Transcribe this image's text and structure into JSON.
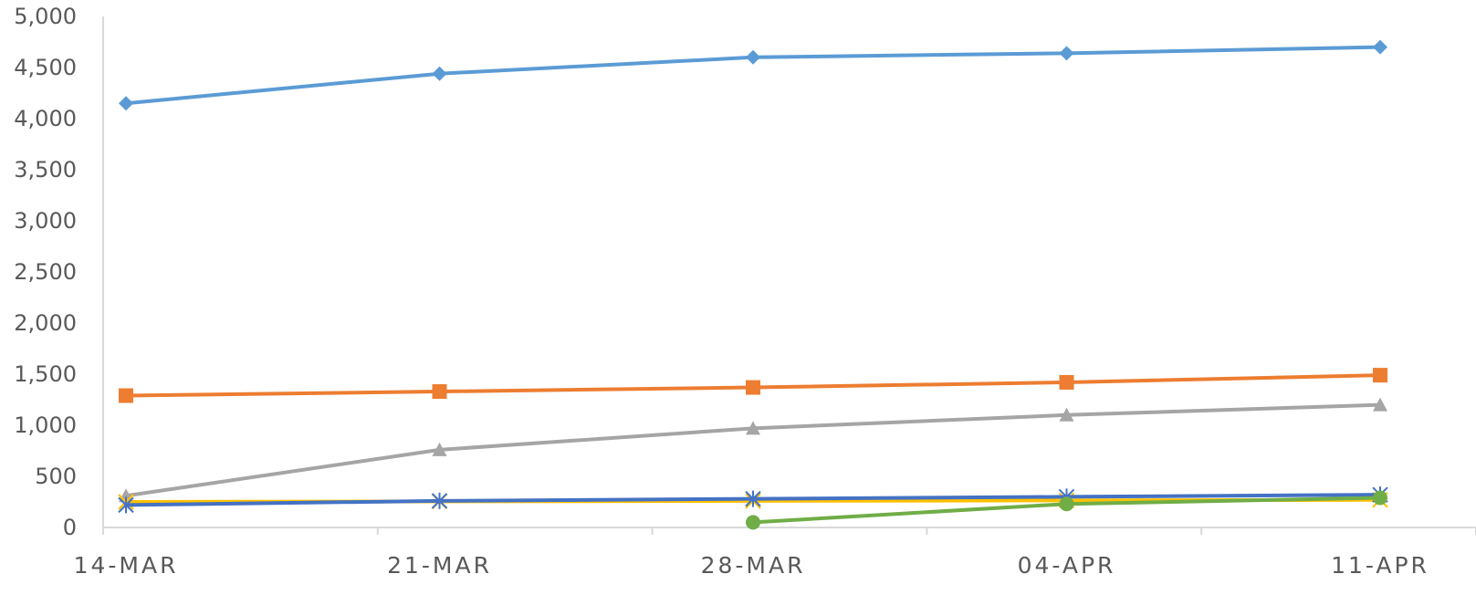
{
  "chart_data": {
    "type": "line",
    "title": "",
    "xlabel": "",
    "ylabel": "",
    "ylim": [
      0,
      5000
    ],
    "y_ticks": [
      "0",
      "500",
      "1,000",
      "1,500",
      "2,000",
      "2,500",
      "3,000",
      "3,500",
      "4,000",
      "4,500",
      "5,000"
    ],
    "x_ticks": [
      "14-MAR",
      "21-MAR",
      "28-MAR",
      "04-APR",
      "11-APR"
    ],
    "categories": [
      "14-MAR",
      "21-MAR",
      "28-MAR",
      "04-APR",
      "11-APR"
    ],
    "grid": false,
    "legend": "none",
    "series": [
      {
        "color": "#5B9BD5",
        "marker": "diamond",
        "values": [
          4150,
          4440,
          4600,
          4640,
          4700
        ]
      },
      {
        "color": "#ED7D31",
        "marker": "square",
        "values": [
          1290,
          1330,
          1370,
          1420,
          1490
        ]
      },
      {
        "color": "#A5A5A5",
        "marker": "triangle",
        "values": [
          310,
          760,
          970,
          1100,
          1200
        ]
      },
      {
        "color": "#FFC000",
        "marker": "x",
        "values": [
          250,
          255,
          260,
          265,
          270
        ]
      },
      {
        "color": "#4472C4",
        "marker": "star",
        "values": [
          220,
          260,
          280,
          300,
          320
        ]
      },
      {
        "color": "#70AD47",
        "marker": "circle",
        "values": [
          null,
          null,
          50,
          230,
          290
        ]
      }
    ]
  }
}
